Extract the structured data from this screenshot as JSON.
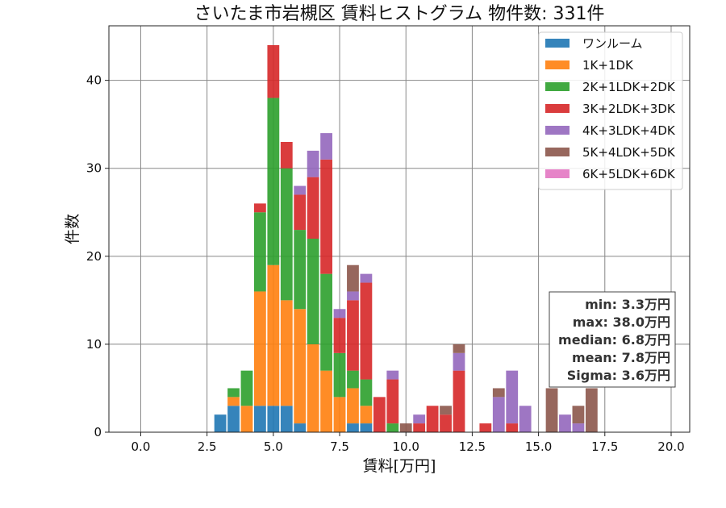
{
  "chart_data": {
    "type": "bar",
    "stacked": true,
    "title": "さいたま市岩槻区 賃料ヒストグラム  物件数: 331件",
    "xlabel": "賃料[万円]",
    "ylabel": "件数",
    "xlim": [
      -1.2,
      20.7
    ],
    "ylim": [
      0,
      46.2
    ],
    "xticks": [
      0.0,
      2.5,
      5.0,
      7.5,
      10.0,
      12.5,
      15.0,
      17.5,
      20.0
    ],
    "xtick_labels": [
      "0.0",
      "2.5",
      "5.0",
      "7.5",
      "10.0",
      "12.5",
      "15.0",
      "17.5",
      "20.0"
    ],
    "yticks": [
      0,
      10,
      20,
      30,
      40
    ],
    "ytick_labels": [
      "0",
      "10",
      "20",
      "30",
      "40"
    ],
    "grid": true,
    "legend_position": "top-right",
    "bin_width": 0.5,
    "x": [
      3.0,
      3.5,
      4.0,
      4.5,
      5.0,
      5.5,
      6.0,
      6.5,
      7.0,
      7.5,
      8.0,
      8.5,
      9.0,
      9.5,
      10.0,
      10.5,
      11.0,
      11.5,
      12.0,
      12.5,
      13.0,
      13.5,
      14.0,
      14.5,
      15.0,
      15.5,
      16.0,
      16.5,
      17.0
    ],
    "series": [
      {
        "name": "ワンルーム",
        "color": "#1f77b4",
        "values": [
          2,
          3,
          0,
          3,
          3,
          3,
          1,
          0,
          0,
          0,
          1,
          1,
          0,
          0,
          0,
          0,
          0,
          0,
          0,
          0,
          0,
          0,
          0,
          0,
          0,
          0,
          0,
          0,
          0
        ]
      },
      {
        "name": "1K+1DK",
        "color": "#ff7f0e",
        "values": [
          0,
          1,
          3,
          13,
          16,
          12,
          13,
          10,
          7,
          4,
          4,
          2,
          0,
          0,
          0,
          0,
          0,
          0,
          0,
          0,
          0,
          0,
          0,
          0,
          0,
          0,
          0,
          0,
          0
        ]
      },
      {
        "name": "2K+1LDK+2DK",
        "color": "#2ca02c",
        "values": [
          0,
          1,
          4,
          9,
          19,
          15,
          9,
          12,
          11,
          5,
          2,
          3,
          0,
          1,
          0,
          0,
          0,
          0,
          0,
          0,
          0,
          0,
          0,
          0,
          0,
          0,
          0,
          0,
          0
        ]
      },
      {
        "name": "3K+2LDK+3DK",
        "color": "#d62728",
        "values": [
          0,
          0,
          0,
          1,
          6,
          3,
          4,
          7,
          13,
          4,
          8,
          11,
          4,
          5,
          0,
          1,
          3,
          2,
          7,
          0,
          1,
          0,
          1,
          0,
          0,
          0,
          0,
          0,
          0
        ]
      },
      {
        "name": "4K+3LDK+4DK",
        "color": "#9467bd",
        "values": [
          0,
          0,
          0,
          0,
          0,
          0,
          1,
          3,
          3,
          1,
          1,
          1,
          0,
          1,
          0,
          1,
          0,
          0,
          2,
          0,
          0,
          4,
          6,
          3,
          0,
          0,
          2,
          1,
          0
        ]
      },
      {
        "name": "5K+4LDK+5DK",
        "color": "#8c564b",
        "values": [
          0,
          0,
          0,
          0,
          0,
          0,
          0,
          0,
          0,
          0,
          3,
          0,
          0,
          0,
          1,
          0,
          0,
          1,
          1,
          0,
          0,
          1,
          0,
          0,
          0,
          5,
          0,
          2,
          5
        ]
      },
      {
        "name": "6K+5LDK+6DK",
        "color": "#e377c2",
        "values": [
          0,
          0,
          0,
          0,
          0,
          0,
          0,
          0,
          0,
          0,
          0,
          0,
          0,
          0,
          0,
          0,
          0,
          0,
          0,
          0,
          0,
          0,
          0,
          0,
          0,
          0,
          0,
          0,
          0
        ]
      }
    ],
    "stats_box": {
      "lines": [
        "min: 3.3万円",
        "max: 38.0万円",
        "median: 6.8万円",
        "mean: 7.8万円",
        "Sigma: 3.6万円"
      ]
    }
  }
}
